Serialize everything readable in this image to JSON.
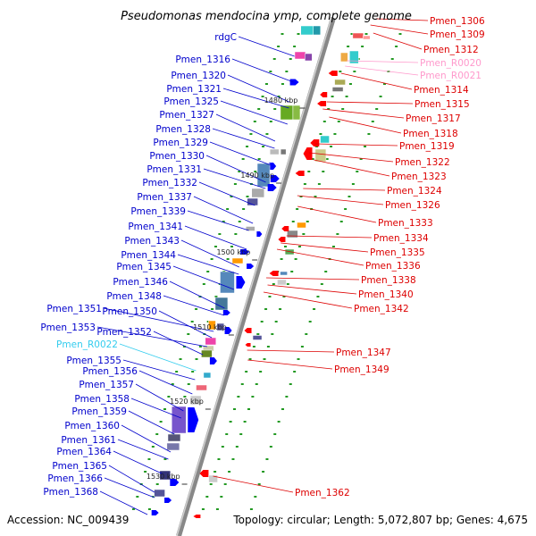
{
  "title": "Pseudomonas mendocina ymp, complete genome",
  "footer": {
    "accession": "Accession: NC_009439",
    "summary": "Topology: circular; Length: 5,072,807 bp; Genes: 4,675"
  },
  "colors": {
    "left_label": "#0000cc",
    "right_label": "#dd0000",
    "rna_left": "#33ccee",
    "rna_right": "#ff99cc",
    "forward_strand": "#0000ff",
    "reverse_strand": "#ff0000",
    "backbone": "#888888"
  },
  "kbp_marks": [
    "1480 kbp",
    "1490 kbp",
    "1500 kbp",
    "1510 kbp",
    "1520 kbp",
    "1530 kbp"
  ],
  "left_labels": [
    {
      "text": "rdgC",
      "rna": false
    },
    {
      "text": "Pmen_1316",
      "rna": false
    },
    {
      "text": "Pmen_1320",
      "rna": false
    },
    {
      "text": "Pmen_1321",
      "rna": false
    },
    {
      "text": "Pmen_1325",
      "rna": false
    },
    {
      "text": "Pmen_1327",
      "rna": false
    },
    {
      "text": "Pmen_1328",
      "rna": false
    },
    {
      "text": "Pmen_1329",
      "rna": false
    },
    {
      "text": "Pmen_1330",
      "rna": false
    },
    {
      "text": "Pmen_1331",
      "rna": false
    },
    {
      "text": "Pmen_1332",
      "rna": false
    },
    {
      "text": "Pmen_1337",
      "rna": false
    },
    {
      "text": "Pmen_1339",
      "rna": false
    },
    {
      "text": "Pmen_1341",
      "rna": false
    },
    {
      "text": "Pmen_1343",
      "rna": false
    },
    {
      "text": "Pmen_1344",
      "rna": false
    },
    {
      "text": "Pmen_1345",
      "rna": false
    },
    {
      "text": "Pmen_1346",
      "rna": false
    },
    {
      "text": "Pmen_1348",
      "rna": false
    },
    {
      "text": "Pmen_1351",
      "rna": false
    },
    {
      "text": "Pmen_1350",
      "rna": false
    },
    {
      "text": "Pmen_1353",
      "rna": false
    },
    {
      "text": "Pmen_1352",
      "rna": false
    },
    {
      "text": "Pmen_R0022",
      "rna": true
    },
    {
      "text": "Pmen_1355",
      "rna": false
    },
    {
      "text": "Pmen_1356",
      "rna": false
    },
    {
      "text": "Pmen_1357",
      "rna": false
    },
    {
      "text": "Pmen_1358",
      "rna": false
    },
    {
      "text": "Pmen_1359",
      "rna": false
    },
    {
      "text": "Pmen_1360",
      "rna": false
    },
    {
      "text": "Pmen_1361",
      "rna": false
    },
    {
      "text": "Pmen_1364",
      "rna": false
    },
    {
      "text": "Pmen_1365",
      "rna": false
    },
    {
      "text": "Pmen_1366",
      "rna": false
    },
    {
      "text": "Pmen_1368",
      "rna": false
    }
  ],
  "right_labels": [
    {
      "text": "Pmen_1306",
      "rna": false
    },
    {
      "text": "Pmen_1309",
      "rna": false
    },
    {
      "text": "Pmen_1312",
      "rna": false
    },
    {
      "text": "Pmen_R0020",
      "rna": true
    },
    {
      "text": "Pmen_R0021",
      "rna": true
    },
    {
      "text": "Pmen_1314",
      "rna": false
    },
    {
      "text": "Pmen_1315",
      "rna": false
    },
    {
      "text": "Pmen_1317",
      "rna": false
    },
    {
      "text": "Pmen_1318",
      "rna": false
    },
    {
      "text": "Pmen_1319",
      "rna": false
    },
    {
      "text": "Pmen_1322",
      "rna": false
    },
    {
      "text": "Pmen_1323",
      "rna": false
    },
    {
      "text": "Pmen_1324",
      "rna": false
    },
    {
      "text": "Pmen_1326",
      "rna": false
    },
    {
      "text": "Pmen_1333",
      "rna": false
    },
    {
      "text": "Pmen_1334",
      "rna": false
    },
    {
      "text": "Pmen_1335",
      "rna": false
    },
    {
      "text": "Pmen_1336",
      "rna": false
    },
    {
      "text": "Pmen_1338",
      "rna": false
    },
    {
      "text": "Pmen_1340",
      "rna": false
    },
    {
      "text": "Pmen_1342",
      "rna": false
    },
    {
      "text": "Pmen_1347",
      "rna": false
    },
    {
      "text": "Pmen_1349",
      "rna": false
    },
    {
      "text": "Pmen_1362",
      "rna": false
    }
  ]
}
